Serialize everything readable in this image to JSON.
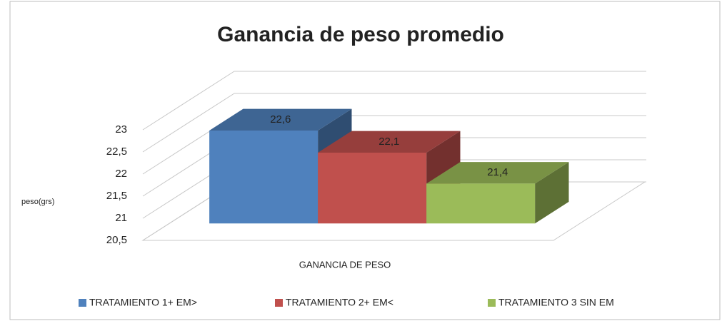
{
  "chart_data": {
    "type": "bar3d",
    "title": "Ganancia de peso promedio",
    "y_axis_label": "peso(grs)",
    "categories": [
      "GANANCIA DE PESO"
    ],
    "series": [
      {
        "name": "TRATAMIENTO  1+ EM>",
        "color": "#4f81bd",
        "values": [
          22.6
        ],
        "value_labels": [
          "22,6"
        ]
      },
      {
        "name": "TRATAMIENTO  2+ EM<",
        "color": "#c0504d",
        "values": [
          22.1
        ],
        "value_labels": [
          "22,1"
        ]
      },
      {
        "name": "TRATAMIENTO  3 SIN  EM",
        "color": "#9bbb59",
        "values": [
          21.4
        ],
        "value_labels": [
          "21,4"
        ]
      }
    ],
    "ylim": [
      20.5,
      23
    ],
    "yticks": [
      {
        "value": 20.5,
        "label": "20,5"
      },
      21,
      {
        "value": 21.5,
        "label": "21,5"
      },
      22,
      {
        "value": 22.5,
        "label": "22,5"
      },
      23
    ],
    "grid": true,
    "legend": "bottom"
  }
}
